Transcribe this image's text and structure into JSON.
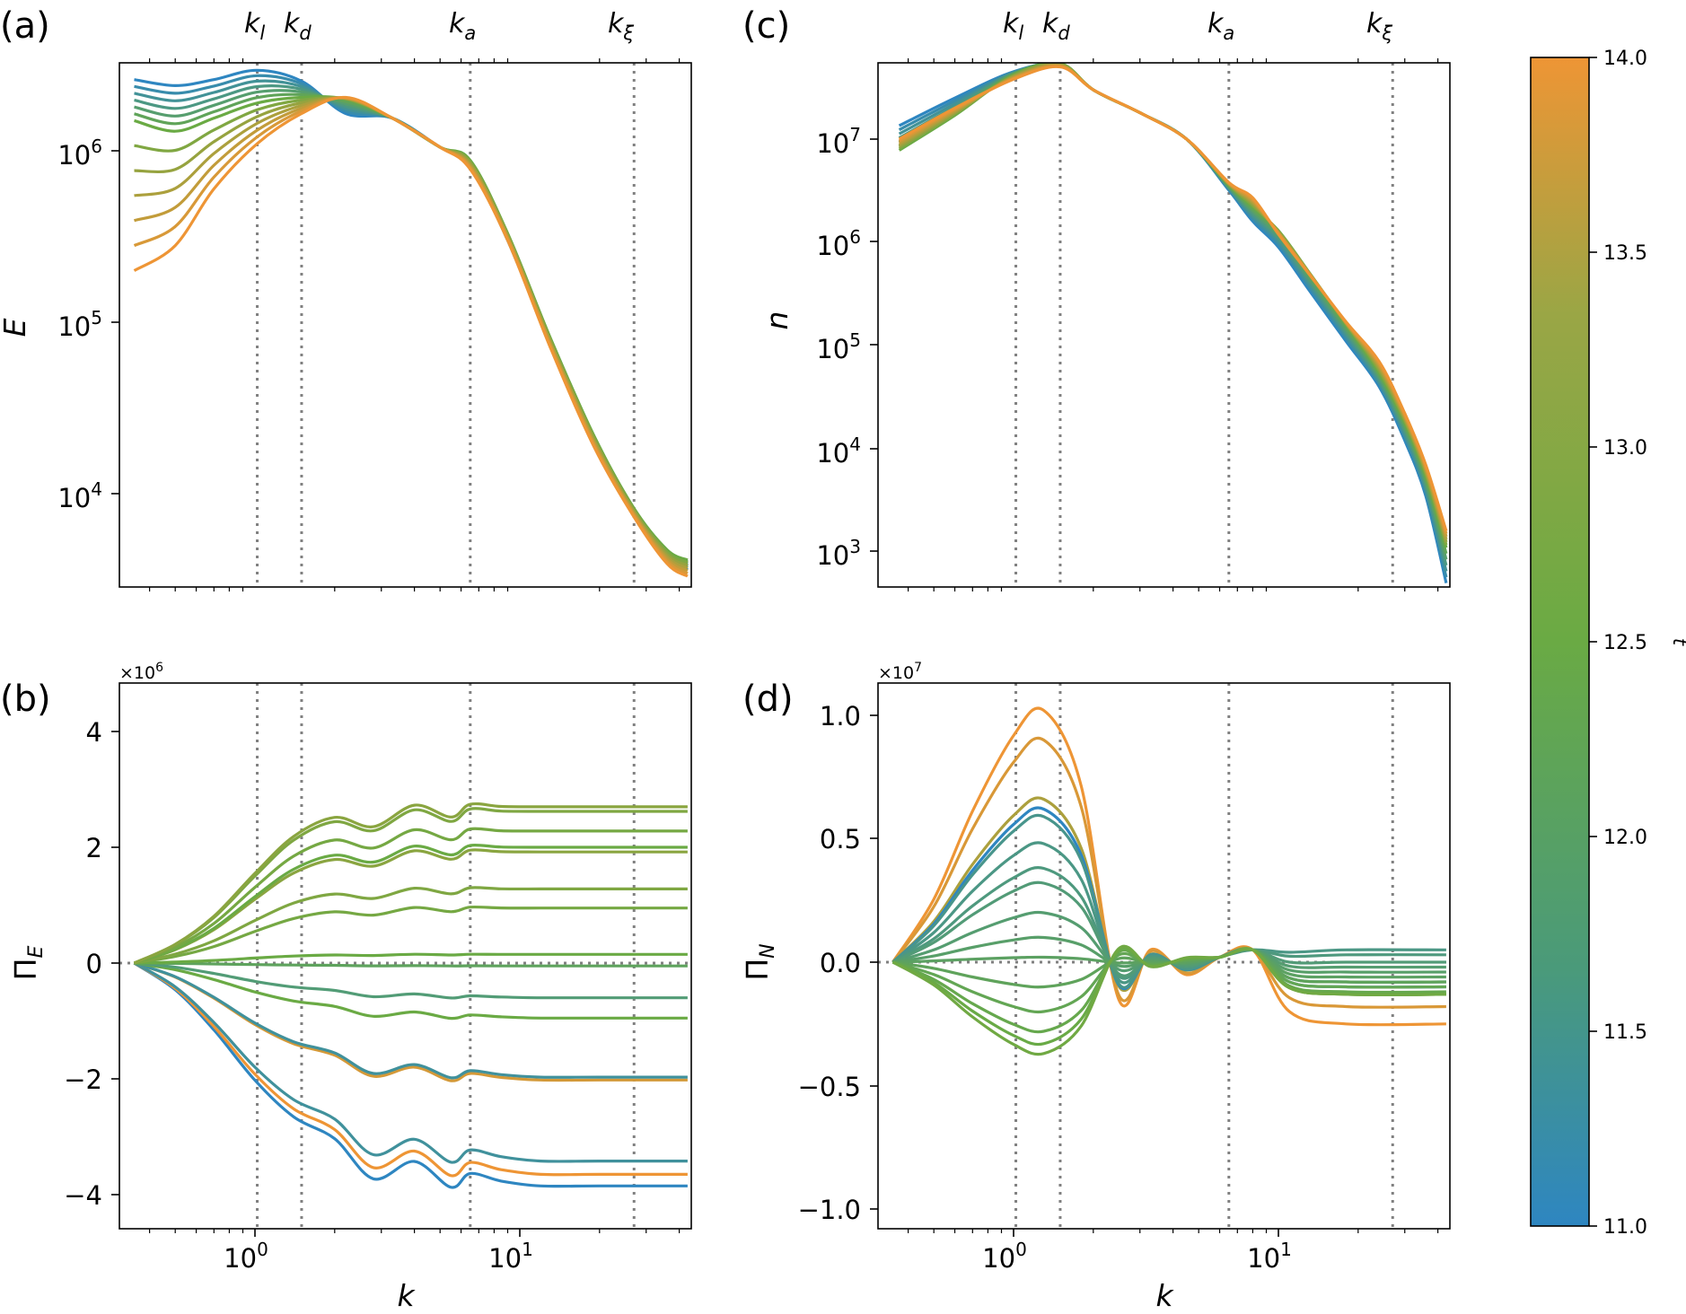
{
  "chart_data": [
    {
      "type": "line",
      "panel": "(a)",
      "xscale": "log",
      "yscale": "log",
      "xlim": [
        0.32,
        44
      ],
      "ylim": [
        2700,
        3600000
      ],
      "xlabel": "",
      "ylabel": "E",
      "xticks": [
        {
          "value": 1,
          "label": "10^0"
        },
        {
          "value": 10,
          "label": "10^1"
        }
      ],
      "yticks": [
        {
          "value": 10000,
          "label": "10^4"
        },
        {
          "value": 100000,
          "label": "10^5"
        },
        {
          "value": 1000000,
          "label": "10^6"
        }
      ],
      "vlines": [
        1.02,
        1.5,
        6.5,
        27
      ],
      "top_markers": [
        "k_l",
        "k_d",
        "k_a",
        "k_ξ"
      ],
      "n_curves": 12,
      "curve_k": [
        0.35,
        0.5,
        0.7,
        1.02,
        1.5,
        2.2,
        3.3,
        5.0,
        6.5,
        9,
        13,
        19,
        27,
        36,
        43
      ],
      "curve_ends": {
        "t11": [
          2600000,
          2400000,
          2600000,
          2950000,
          2550000,
          1650000,
          1550000,
          1050000,
          820000,
          300000,
          75000,
          20000,
          7600,
          4300,
          3600
        ],
        "t12_5": [
          1500000,
          1300000,
          1550000,
          1900000,
          2050000,
          2000000,
          1550000,
          1050000,
          880000,
          330000,
          82000,
          22000,
          8200,
          4700,
          4100
        ],
        "t14": [
          200000,
          280000,
          600000,
          1100000,
          1650000,
          2050000,
          1550000,
          1050000,
          780000,
          300000,
          72000,
          19000,
          7300,
          3900,
          3300
        ]
      }
    },
    {
      "type": "line",
      "panel": "(b)",
      "xscale": "log",
      "yscale": "linear",
      "xlim": [
        0.32,
        44
      ],
      "ylim": [
        -4.6,
        4.6
      ],
      "y_multiplier": "×10^6",
      "xlabel": "k",
      "ylabel": "Π_E",
      "xticks": [
        {
          "value": 1,
          "label": "10^0"
        },
        {
          "value": 10,
          "label": "10^1"
        }
      ],
      "yticks": [
        {
          "value": -4,
          "label": "−4"
        },
        {
          "value": -2,
          "label": "−2"
        },
        {
          "value": 0,
          "label": "0"
        },
        {
          "value": 2,
          "label": "2"
        },
        {
          "value": 4,
          "label": "4"
        }
      ],
      "vlines": [
        1.02,
        1.5,
        6.5,
        27
      ],
      "hline": 0,
      "curve_k": [
        0.35,
        0.5,
        0.7,
        1.0,
        1.4,
        2.0,
        2.8,
        4.0,
        5.5,
        6.5,
        8.5,
        12,
        20,
        43
      ],
      "curve_finals": [
        -3.85,
        -3.65,
        -3.42,
        -2.02,
        -1.97,
        -0.95,
        -0.6,
        -0.05,
        0.15,
        0.95,
        1.28,
        1.92,
        2.0,
        2.28,
        2.62,
        2.7
      ]
    },
    {
      "type": "line",
      "panel": "(c)",
      "xscale": "log",
      "yscale": "log",
      "xlim": [
        0.32,
        44
      ],
      "ylim": [
        420,
        65000000
      ],
      "xlabel": "",
      "ylabel": "n",
      "xticks": [
        {
          "value": 1,
          "label": "10^0"
        },
        {
          "value": 10,
          "label": "10^1"
        }
      ],
      "yticks": [
        {
          "value": 1000,
          "label": "10^3"
        },
        {
          "value": 10000,
          "label": "10^4"
        },
        {
          "value": 100000,
          "label": "10^5"
        },
        {
          "value": 1000000,
          "label": "10^6"
        },
        {
          "value": 10000000,
          "label": "10^7"
        }
      ],
      "vlines": [
        1.02,
        1.5,
        6.5,
        27
      ],
      "top_markers": [
        "k_l",
        "k_d",
        "k_a",
        "k_ξ"
      ],
      "curve_k": [
        0.37,
        0.6,
        1.0,
        1.5,
        2.0,
        3.0,
        4.5,
        6.5,
        8.0,
        10,
        13,
        18,
        24,
        30,
        36,
        43
      ],
      "curve_ends": {
        "t11": [
          13500000,
          25000000,
          45000000,
          53000000,
          30000000,
          18000000,
          10000000,
          3200000,
          1600000,
          900000,
          350000,
          110000,
          40000,
          12000,
          3500,
          500
        ],
        "t12_5": [
          7800000,
          17000000,
          42000000,
          54000000,
          30000000,
          18000000,
          10000000,
          3600000,
          2200000,
          1300000,
          520000,
          160000,
          55000,
          18000,
          5500,
          1100
        ],
        "t14": [
          10000000,
          20000000,
          38000000,
          50000000,
          30000000,
          18000000,
          10000000,
          3800000,
          2700000,
          1200000,
          500000,
          170000,
          70000,
          22000,
          7000,
          1600
        ]
      }
    },
    {
      "type": "line",
      "panel": "(d)",
      "xscale": "log",
      "yscale": "linear",
      "xlim": [
        0.32,
        44
      ],
      "ylim": [
        -1.1,
        1.08
      ],
      "y_multiplier": "×10^7",
      "xlabel": "k",
      "ylabel": "Π_N",
      "xticks": [
        {
          "value": 1,
          "label": "10^0"
        },
        {
          "value": 10,
          "label": "10^1"
        }
      ],
      "yticks": [
        {
          "value": -1.0,
          "label": "−1.0"
        },
        {
          "value": -0.5,
          "label": "−0.5"
        },
        {
          "value": 0.0,
          "label": "0.0"
        },
        {
          "value": 0.5,
          "label": "0.5"
        },
        {
          "value": 1.0,
          "label": "1.0"
        }
      ],
      "vlines": [
        1.02,
        1.5,
        6.5,
        27
      ],
      "hline": 0,
      "curve_k": [
        0.35,
        0.5,
        0.7,
        1.0,
        1.3,
        1.8,
        2.5,
        3.3,
        4.5,
        6.0,
        8.0,
        11,
        18,
        43
      ],
      "peak_values": [
        1.02,
        0.9,
        0.66,
        0.62,
        0.59,
        0.48,
        0.38,
        0.32,
        0.2,
        0.1,
        0.02,
        -0.1,
        -0.2,
        -0.28,
        -0.33,
        -0.37
      ],
      "curve_finals": [
        -0.25,
        -0.18,
        -0.13,
        -0.1,
        -0.08,
        -0.05,
        -0.03,
        0.0,
        0.02,
        0.04,
        0.06,
        0.08,
        0.1,
        0.12,
        0.13
      ]
    },
    {
      "type": "colorbar",
      "label": "t",
      "range": [
        11.0,
        14.0
      ],
      "ticks": [
        "11.0",
        "11.5",
        "12.0",
        "12.5",
        "13.0",
        "13.5",
        "14.0"
      ],
      "colors": {
        "low": "#2e86c1",
        "mid": "#6aaa44",
        "high": "#ee9535"
      }
    }
  ],
  "panels": {
    "a": {
      "label": "(a)"
    },
    "b": {
      "label": "(b)",
      "multiplier_base": "×10",
      "multiplier_exp": "6"
    },
    "c": {
      "label": "(c)"
    },
    "d": {
      "label": "(d)",
      "multiplier_base": "×10",
      "multiplier_exp": "7"
    }
  },
  "markers": {
    "kl": {
      "base": "k",
      "sub": "l"
    },
    "kd": {
      "base": "k",
      "sub": "d"
    },
    "ka": {
      "base": "k",
      "sub": "a"
    },
    "kxi": {
      "base": "k",
      "sub": "ξ"
    }
  },
  "labels": {
    "E": "E",
    "n": "n",
    "k": "k",
    "pi": "Π",
    "pi_E_sub": "E",
    "pi_N_sub": "N",
    "t": "t"
  },
  "ticks": {
    "ten": "10",
    "exp0": "0",
    "exp1": "1",
    "exp3": "3",
    "exp4": "4",
    "exp5": "5",
    "exp6": "6",
    "exp7": "7",
    "b": [
      "−4",
      "−2",
      "0",
      "2",
      "4"
    ],
    "d": [
      "−1.0",
      "−0.5",
      "0.0",
      "0.5",
      "1.0"
    ]
  },
  "colorbar": {
    "ticks": [
      "11.0",
      "11.5",
      "12.0",
      "12.5",
      "13.0",
      "13.5",
      "14.0"
    ]
  }
}
